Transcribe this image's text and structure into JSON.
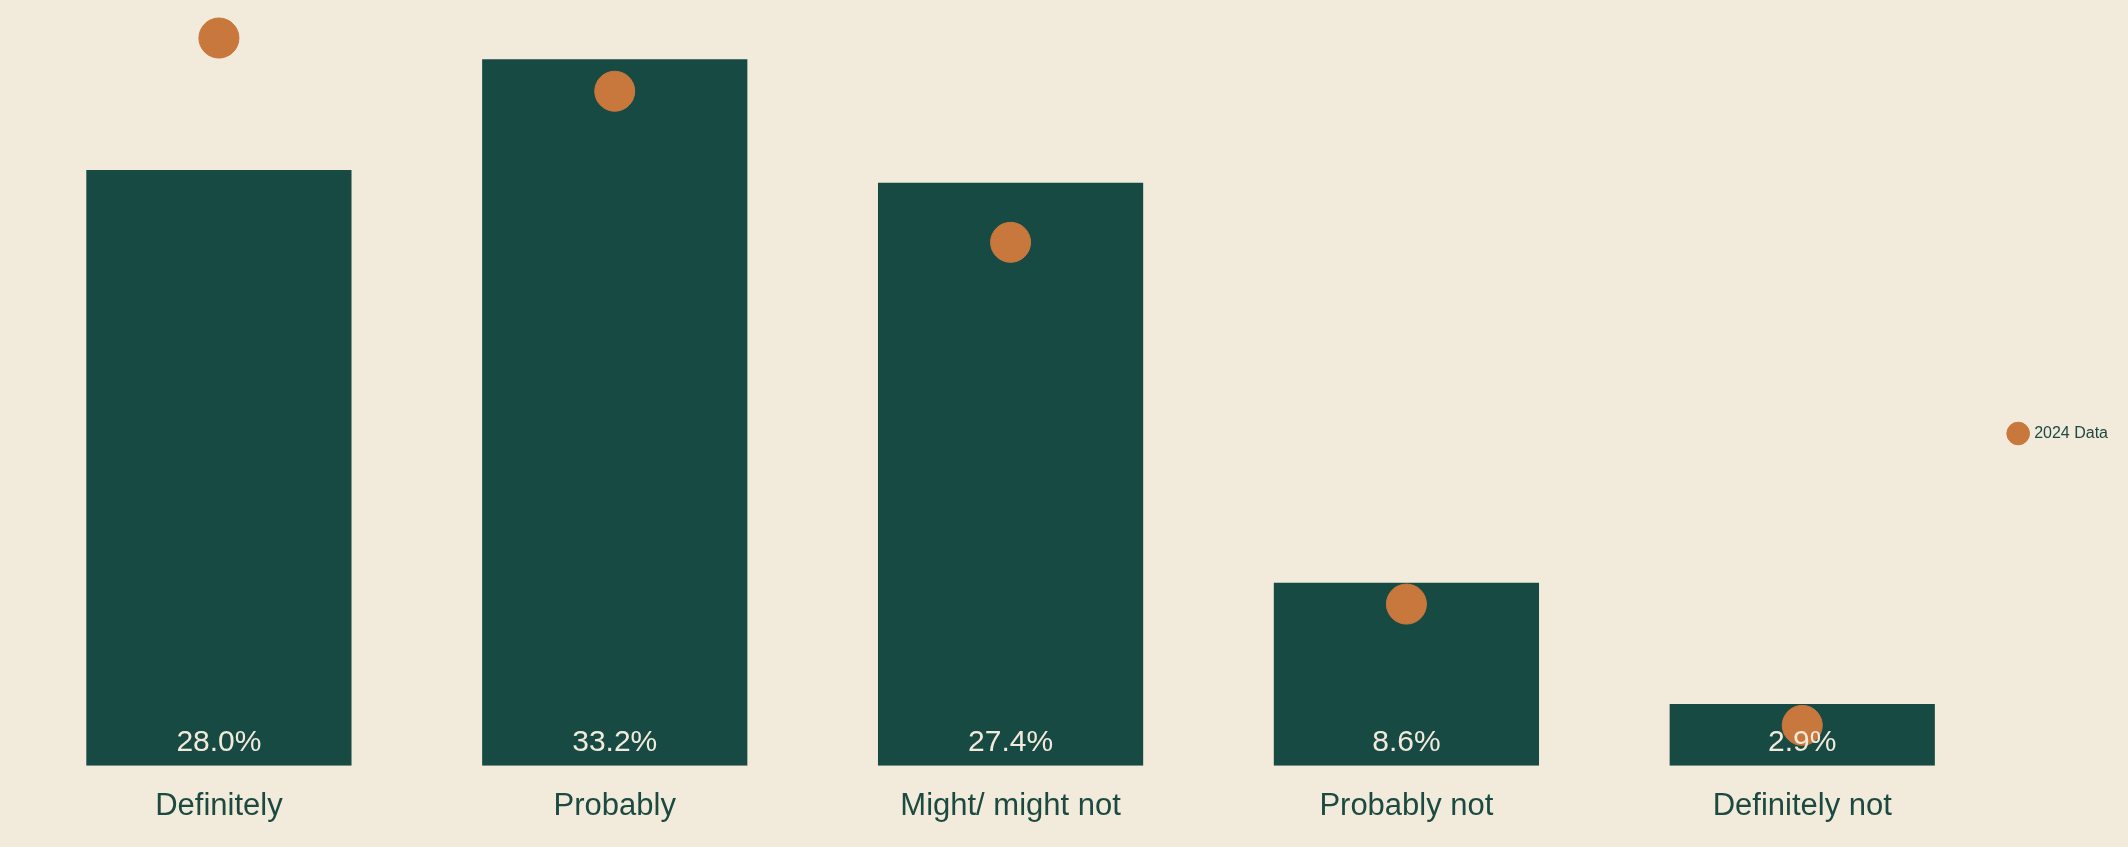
{
  "chart_data": {
    "type": "bar",
    "categories": [
      "Definitely",
      "Probably",
      "Might/ might not",
      "Probably not",
      "Definitely not"
    ],
    "series": [
      {
        "color": "#164a43",
        "values": [
          28.0,
          33.2,
          27.4,
          8.6,
          2.9
        ],
        "value_labels": [
          "28.0%",
          "33.2%",
          "27.4%",
          "8.6%",
          "2.9%"
        ]
      },
      {
        "type": "scatter",
        "name": "2024 Data",
        "color": "#c8773d",
        "x": [
          "Definitely",
          "Probably",
          "Might/ might not",
          "Probably not",
          "Definitely not"
        ],
        "values": [
          34.2,
          31.7,
          24.6,
          7.6,
          1.9
        ]
      }
    ],
    "legend": "right",
    "marker": "circle",
    "grid": false,
    "tick_labels": "x"
  }
}
